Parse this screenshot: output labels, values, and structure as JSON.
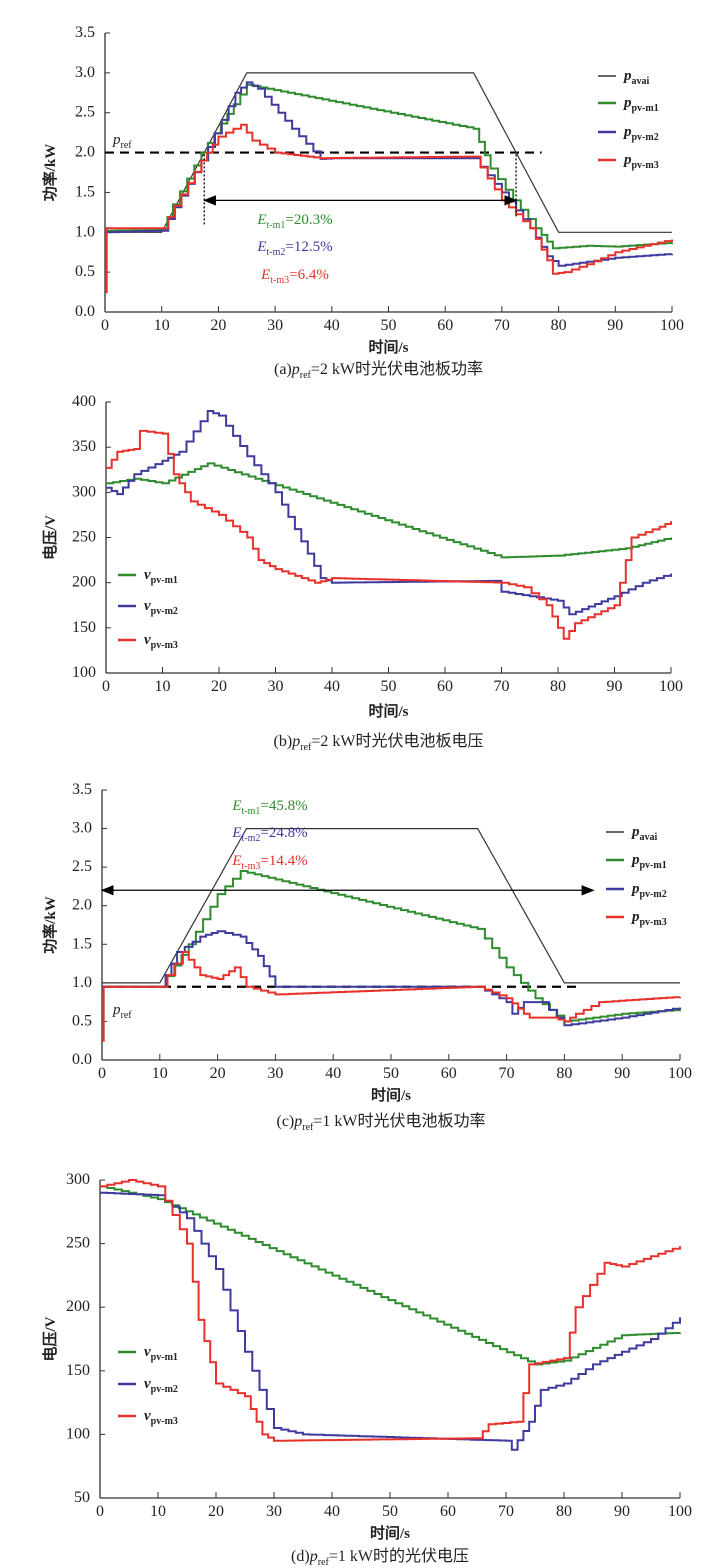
{
  "colors": {
    "avai": "#333333",
    "m1": "#2e8b2e",
    "m2": "#3f3a9e",
    "m3": "#e8312a",
    "ref": "#000000"
  },
  "chart_data": [
    {
      "type": "line",
      "caption": {
        "prefix": "(a)",
        "p": "p",
        "sub": "ref",
        "rest": "=2 kW时光伏电池板功率"
      },
      "xlabel": "时间/s",
      "ylabel": "功率/kW",
      "xlim": [
        0,
        100
      ],
      "ylim": [
        0,
        3.5
      ],
      "xticks": [
        "0",
        "10",
        "20",
        "30",
        "40",
        "50",
        "60",
        "70",
        "80",
        "90",
        "100"
      ],
      "yticks": [
        "0.0",
        "0.5",
        "1.0",
        "1.5",
        "2.0",
        "2.5",
        "3.0",
        "3.5"
      ],
      "legend_position": "right",
      "reference": {
        "label": {
          "p": "p",
          "sub": "ref"
        },
        "value": 2.0,
        "x_end": 77
      },
      "span_arrow": {
        "from": 17.5,
        "to": 72.5,
        "y": 1.4
      },
      "annotations": [
        {
          "e": "E",
          "sub": "t-m1",
          "value": "=20.3%",
          "color_key": "m1"
        },
        {
          "e": "E",
          "sub": "t-m2",
          "value": "=12.5%",
          "color_key": "m2"
        },
        {
          "e": "E",
          "sub": "t-m3",
          "value": "=6.4%",
          "color_key": "m3"
        }
      ],
      "series": [
        {
          "name": {
            "p": "p",
            "sub": "avai"
          },
          "color_key": "avai",
          "points": [
            [
              0,
              1
            ],
            [
              10,
              1
            ],
            [
              25,
              3
            ],
            [
              65,
              3
            ],
            [
              80,
              1
            ],
            [
              100,
              1
            ]
          ]
        },
        {
          "name": {
            "p": "p",
            "sub": "pv-m1"
          },
          "color_key": "m1",
          "points": [
            [
              0,
              1.02
            ],
            [
              10,
              1.03
            ],
            [
              12,
              1.35
            ],
            [
              17,
              2.0
            ],
            [
              25,
              2.85
            ],
            [
              65,
              2.3
            ],
            [
              68,
              1.8
            ],
            [
              72,
              1.4
            ],
            [
              76,
              1.05
            ],
            [
              79,
              0.8
            ],
            [
              85,
              0.83
            ],
            [
              90,
              0.82
            ],
            [
              100,
              0.87
            ]
          ]
        },
        {
          "name": {
            "p": "p",
            "sub": "pv-m2"
          },
          "color_key": "m2",
          "points": [
            [
              0,
              1.0
            ],
            [
              10,
              1.02
            ],
            [
              17,
              1.9
            ],
            [
              23,
              2.75
            ],
            [
              25,
              2.88
            ],
            [
              27,
              2.8
            ],
            [
              33,
              2.3
            ],
            [
              38,
              1.92
            ],
            [
              40,
              1.93
            ],
            [
              65,
              1.93
            ],
            [
              70,
              1.5
            ],
            [
              75,
              1.05
            ],
            [
              78,
              0.7
            ],
            [
              80,
              0.58
            ],
            [
              90,
              0.68
            ],
            [
              100,
              0.73
            ]
          ]
        },
        {
          "name": {
            "p": "p",
            "sub": "pv-m3"
          },
          "color_key": "m3",
          "points": [
            [
              0,
              0.25
            ],
            [
              0.3,
              1.05
            ],
            [
              10,
              1.05
            ],
            [
              17,
              1.9
            ],
            [
              20,
              2.2
            ],
            [
              24,
              2.35
            ],
            [
              26,
              2.15
            ],
            [
              30,
              2.0
            ],
            [
              38,
              1.93
            ],
            [
              65,
              1.95
            ],
            [
              70,
              1.4
            ],
            [
              75,
              1.05
            ],
            [
              78,
              0.65
            ],
            [
              79,
              0.48
            ],
            [
              81,
              0.5
            ],
            [
              85,
              0.6
            ],
            [
              90,
              0.75
            ],
            [
              100,
              0.91
            ]
          ]
        }
      ]
    },
    {
      "type": "line",
      "caption": {
        "prefix": "(b)",
        "p": "p",
        "sub": "ref",
        "rest": "=2 kW时光伏电池板电压"
      },
      "xlabel": "时间/s",
      "ylabel": "电压/V",
      "xlim": [
        0,
        100
      ],
      "ylim": [
        100,
        400
      ],
      "xticks": [
        "0",
        "10",
        "20",
        "30",
        "40",
        "50",
        "60",
        "70",
        "80",
        "90",
        "100"
      ],
      "yticks": [
        "100",
        "150",
        "200",
        "250",
        "300",
        "350",
        "400"
      ],
      "legend_position": "bottom-left",
      "series": [
        {
          "name": {
            "p": "v",
            "sub": "pv-m1"
          },
          "color_key": "m1",
          "points": [
            [
              0,
              310
            ],
            [
              5,
              315
            ],
            [
              10,
              310
            ],
            [
              18,
              332
            ],
            [
              70,
              228
            ],
            [
              80,
              230
            ],
            [
              92,
              238
            ],
            [
              100,
              250
            ]
          ]
        },
        {
          "name": {
            "p": "v",
            "sub": "pv-m2"
          },
          "color_key": "m2",
          "points": [
            [
              0,
              305
            ],
            [
              2,
              298
            ],
            [
              5,
              320
            ],
            [
              10,
              335
            ],
            [
              13,
              345
            ],
            [
              18,
              390
            ],
            [
              20,
              385
            ],
            [
              25,
              340
            ],
            [
              30,
              300
            ],
            [
              38,
              205
            ],
            [
              40,
              200
            ],
            [
              69,
              202
            ],
            [
              70,
              190
            ],
            [
              75,
              185
            ],
            [
              80,
              180
            ],
            [
              82,
              165
            ],
            [
              90,
              185
            ],
            [
              95,
              200
            ],
            [
              100,
              210
            ]
          ]
        },
        {
          "name": {
            "p": "v",
            "sub": "pv-m3"
          },
          "color_key": "m3",
          "points": [
            [
              0,
              327
            ],
            [
              2,
              345
            ],
            [
              5,
              348
            ],
            [
              6,
              368
            ],
            [
              10,
              365
            ],
            [
              12,
              320
            ],
            [
              15,
              290
            ],
            [
              20,
              275
            ],
            [
              25,
              250
            ],
            [
              27,
              225
            ],
            [
              30,
              215
            ],
            [
              37,
              200
            ],
            [
              40,
              205
            ],
            [
              70,
              200
            ],
            [
              74,
              195
            ],
            [
              78,
              175
            ],
            [
              80,
              150
            ],
            [
              81,
              138
            ],
            [
              83,
              155
            ],
            [
              90,
              175
            ],
            [
              93,
              250
            ],
            [
              98,
              262
            ],
            [
              100,
              268
            ]
          ]
        }
      ]
    },
    {
      "type": "line",
      "caption": {
        "prefix": "(c)",
        "p": "p",
        "sub": "ref",
        "rest": "=1 kW时光伏电池板功率"
      },
      "xlabel": "时间/s",
      "ylabel": "功率/kW",
      "xlim": [
        0,
        100
      ],
      "ylim": [
        0,
        3.5
      ],
      "xticks": [
        "0",
        "10",
        "20",
        "30",
        "40",
        "50",
        "60",
        "70",
        "80",
        "90",
        "100"
      ],
      "yticks": [
        "0.0",
        "0.5",
        "1.0",
        "1.5",
        "2.0",
        "2.5",
        "3.0",
        "3.5"
      ],
      "legend_position": "right",
      "reference": {
        "label": {
          "p": "p",
          "sub": "ref"
        },
        "value": 0.95,
        "x_end": 82
      },
      "span_arrow": {
        "from": 0,
        "to": 85,
        "y": 2.2
      },
      "annotations": [
        {
          "e": "E",
          "sub": "t-m1",
          "value": "=45.8%",
          "color_key": "m1"
        },
        {
          "e": "E",
          "sub": "t-m2",
          "value": "=24.8%",
          "color_key": "m2"
        },
        {
          "e": "E",
          "sub": "t-m3",
          "value": "=14.4%",
          "color_key": "m3"
        }
      ],
      "series": [
        {
          "name": {
            "p": "p",
            "sub": "avai"
          },
          "color_key": "avai",
          "points": [
            [
              0,
              1
            ],
            [
              10,
              1
            ],
            [
              25,
              3
            ],
            [
              65,
              3
            ],
            [
              80,
              1
            ],
            [
              100,
              1
            ]
          ]
        },
        {
          "name": {
            "p": "p",
            "sub": "pv-m1"
          },
          "color_key": "m1",
          "points": [
            [
              0,
              0.95
            ],
            [
              10,
              0.95
            ],
            [
              15,
              1.5
            ],
            [
              20,
              2.15
            ],
            [
              24,
              2.45
            ],
            [
              65,
              1.7
            ],
            [
              70,
              1.2
            ],
            [
              75,
              0.8
            ],
            [
              80,
              0.5
            ],
            [
              90,
              0.6
            ],
            [
              100,
              0.65
            ]
          ]
        },
        {
          "name": {
            "p": "p",
            "sub": "pv-m2"
          },
          "color_key": "m2",
          "points": [
            [
              0,
              0.95
            ],
            [
              10,
              0.95
            ],
            [
              13,
              1.4
            ],
            [
              17,
              1.6
            ],
            [
              20,
              1.67
            ],
            [
              24,
              1.6
            ],
            [
              27,
              1.35
            ],
            [
              30,
              0.95
            ],
            [
              65,
              0.95
            ],
            [
              70,
              0.75
            ],
            [
              71,
              0.6
            ],
            [
              73,
              0.75
            ],
            [
              76,
              0.75
            ],
            [
              80,
              0.45
            ],
            [
              90,
              0.55
            ],
            [
              100,
              0.68
            ]
          ]
        },
        {
          "name": {
            "p": "p",
            "sub": "pv-m3"
          },
          "color_key": "m3",
          "points": [
            [
              0,
              0.25
            ],
            [
              0.3,
              0.95
            ],
            [
              10,
              0.95
            ],
            [
              14,
              1.4
            ],
            [
              17,
              1.1
            ],
            [
              20,
              1.05
            ],
            [
              23,
              1.2
            ],
            [
              25,
              0.95
            ],
            [
              30,
              0.85
            ],
            [
              65,
              0.95
            ],
            [
              70,
              0.8
            ],
            [
              73,
              0.6
            ],
            [
              74,
              0.55
            ],
            [
              78,
              0.55
            ],
            [
              80,
              0.5
            ],
            [
              82,
              0.6
            ],
            [
              86,
              0.75
            ],
            [
              100,
              0.82
            ]
          ]
        }
      ]
    },
    {
      "type": "line",
      "caption": {
        "prefix": "(d)",
        "p": "p",
        "sub": "ref",
        "rest": "=1 kW时的光伏电压"
      },
      "xlabel": "时间/s",
      "ylabel": "电压/V",
      "xlim": [
        0,
        100
      ],
      "ylim": [
        50,
        300
      ],
      "xticks": [
        "0",
        "10",
        "20",
        "30",
        "40",
        "50",
        "60",
        "70",
        "80",
        "90",
        "100"
      ],
      "yticks": [
        "50",
        "100",
        "150",
        "200",
        "250",
        "300"
      ],
      "legend_position": "bottom-left",
      "series": [
        {
          "name": {
            "p": "v",
            "sub": "pv-m1"
          },
          "color_key": "m1",
          "points": [
            [
              0,
              295
            ],
            [
              10,
              285
            ],
            [
              75,
              155
            ],
            [
              80,
              158
            ],
            [
              90,
              178
            ],
            [
              100,
              180
            ]
          ]
        },
        {
          "name": {
            "p": "v",
            "sub": "pv-m2"
          },
          "color_key": "m2",
          "points": [
            [
              0,
              290
            ],
            [
              10,
              288
            ],
            [
              15,
              270
            ],
            [
              20,
              230
            ],
            [
              25,
              165
            ],
            [
              30,
              105
            ],
            [
              35,
              100
            ],
            [
              70,
              95
            ],
            [
              71,
              88
            ],
            [
              74,
              110
            ],
            [
              76,
              135
            ],
            [
              80,
              140
            ],
            [
              85,
              155
            ],
            [
              95,
              175
            ],
            [
              100,
              192
            ]
          ]
        },
        {
          "name": {
            "p": "v",
            "sub": "pv-m3"
          },
          "color_key": "m3",
          "points": [
            [
              0,
              295
            ],
            [
              5,
              300
            ],
            [
              10,
              295
            ],
            [
              15,
              250
            ],
            [
              17,
              190
            ],
            [
              20,
              140
            ],
            [
              25,
              130
            ],
            [
              28,
              100
            ],
            [
              30,
              95
            ],
            [
              65,
              97
            ],
            [
              67,
              108
            ],
            [
              72,
              110
            ],
            [
              74,
              155
            ],
            [
              80,
              160
            ],
            [
              82,
              200
            ],
            [
              87,
              235
            ],
            [
              90,
              232
            ],
            [
              100,
              248
            ]
          ]
        }
      ]
    }
  ]
}
